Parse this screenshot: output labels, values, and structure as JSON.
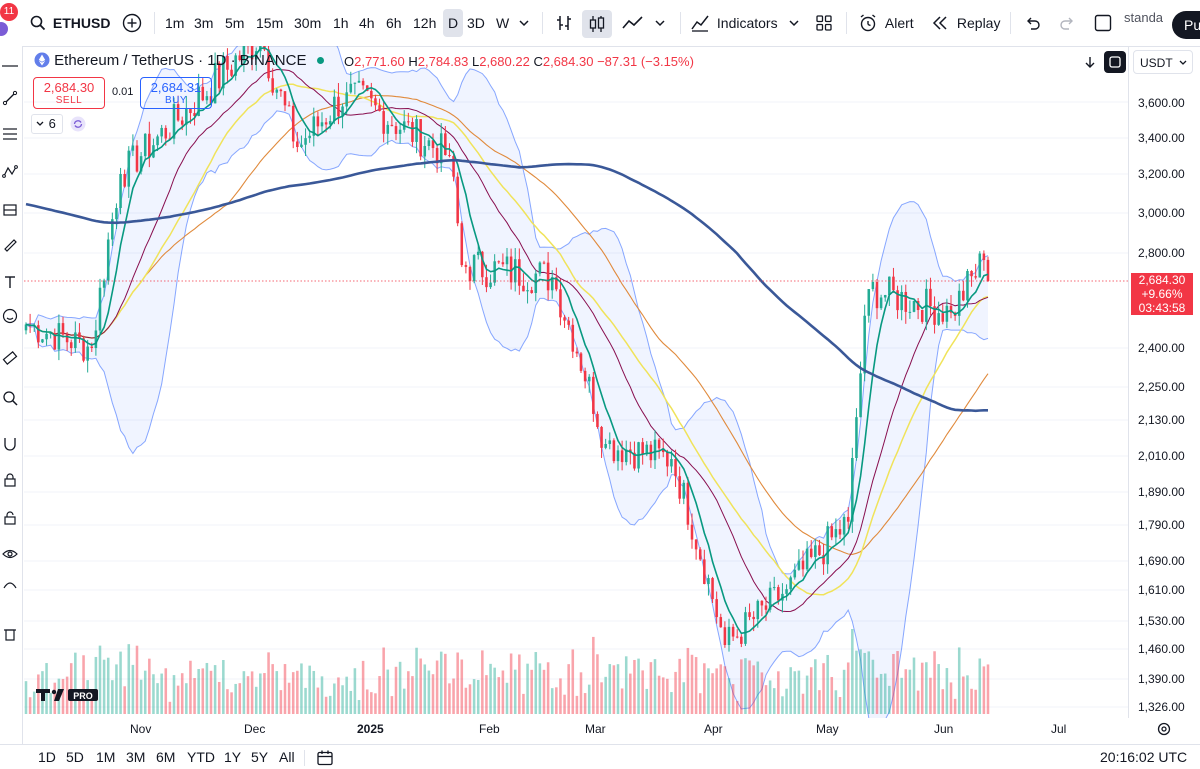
{
  "toolbar": {
    "notification_count": "11",
    "symbol": "ETHUSD",
    "timeframes": [
      "1m",
      "3m",
      "5m",
      "15m",
      "30m",
      "1h",
      "4h",
      "6h",
      "12h",
      "D",
      "3D",
      "W"
    ],
    "active_timeframe": "D",
    "indicators_label": "Indicators",
    "alert_label": "Alert",
    "replay_label": "Replay",
    "layout_label": "standa",
    "publish_label": "Pu"
  },
  "legend": {
    "title": "Ethereum / TetherUS · 1D · BINANCE",
    "o_key": "O",
    "o_val": "2,771.60",
    "h_key": "H",
    "h_val": "2,784.83",
    "l_key": "L",
    "l_val": "2,680.22",
    "c_key": "C",
    "c_val": "2,684.30",
    "change": "−87.31 (−3.15%)",
    "sell_price": "2,684.30",
    "sell_label": "SELL",
    "buy_price": "2,684.31",
    "buy_label": "BUY",
    "spread": "0.01",
    "indicator_count": "6"
  },
  "price_axis": {
    "currency": "USDT",
    "labels": [
      "3,600.00",
      "3,400.00",
      "3,200.00",
      "3,000.00",
      "2,800.00",
      "2,400.00",
      "2,250.00",
      "2,130.00",
      "2,010.00",
      "1,890.00",
      "1,790.00",
      "1,690.00",
      "1,610.00",
      "1,530.00",
      "1,460.00",
      "1,390.00",
      "1,326.00"
    ],
    "current_price": "2,684.30",
    "current_change": "+9.66%",
    "countdown": "03:43:58"
  },
  "time_axis": {
    "labels": [
      "Nov",
      "Dec",
      "2025",
      "Feb",
      "Mar",
      "Apr",
      "May",
      "Jun",
      "Jul"
    ]
  },
  "bottom": {
    "ranges": [
      "1D",
      "5D",
      "1M",
      "3M",
      "6M",
      "YTD",
      "1Y",
      "5Y",
      "All"
    ],
    "clock": "20:16:02 UTC"
  },
  "colors": {
    "up": "#22ab94",
    "down": "#f23645",
    "ma_long": "#3a5898",
    "ma_fast": "#089981",
    "ma_mid": "#880e4f",
    "ma_yellow": "#f0e35a",
    "ma_orange": "#e08a3c",
    "band": "#2962ff"
  },
  "chart_data": {
    "type": "candlestick",
    "symbol": "ETHUSD",
    "interval": "1D",
    "last": {
      "open": 2771.6,
      "high": 2784.83,
      "low": 2680.22,
      "close": 2684.3
    },
    "key_points": [
      {
        "date": "2024-10-20",
        "close": 2500
      },
      {
        "date": "2024-11-05",
        "close": 2400
      },
      {
        "date": "2024-11-12",
        "close": 3200
      },
      {
        "date": "2024-12-16",
        "close": 3950
      },
      {
        "date": "2024-12-25",
        "close": 3350
      },
      {
        "date": "2025-01-06",
        "close": 3650
      },
      {
        "date": "2025-01-31",
        "close": 3300
      },
      {
        "date": "2025-02-03",
        "close": 2750
      },
      {
        "date": "2025-02-25",
        "close": 2700
      },
      {
        "date": "2025-03-10",
        "close": 2050
      },
      {
        "date": "2025-03-26",
        "close": 2000
      },
      {
        "date": "2025-04-08",
        "close": 1470
      },
      {
        "date": "2025-04-22",
        "close": 1600
      },
      {
        "date": "2025-05-08",
        "close": 1800
      },
      {
        "date": "2025-05-13",
        "close": 2650
      },
      {
        "date": "2025-06-02",
        "close": 2550
      },
      {
        "date": "2025-06-10",
        "close": 2771
      },
      {
        "date": "2025-06-11",
        "close": 2684.3
      }
    ]
  }
}
